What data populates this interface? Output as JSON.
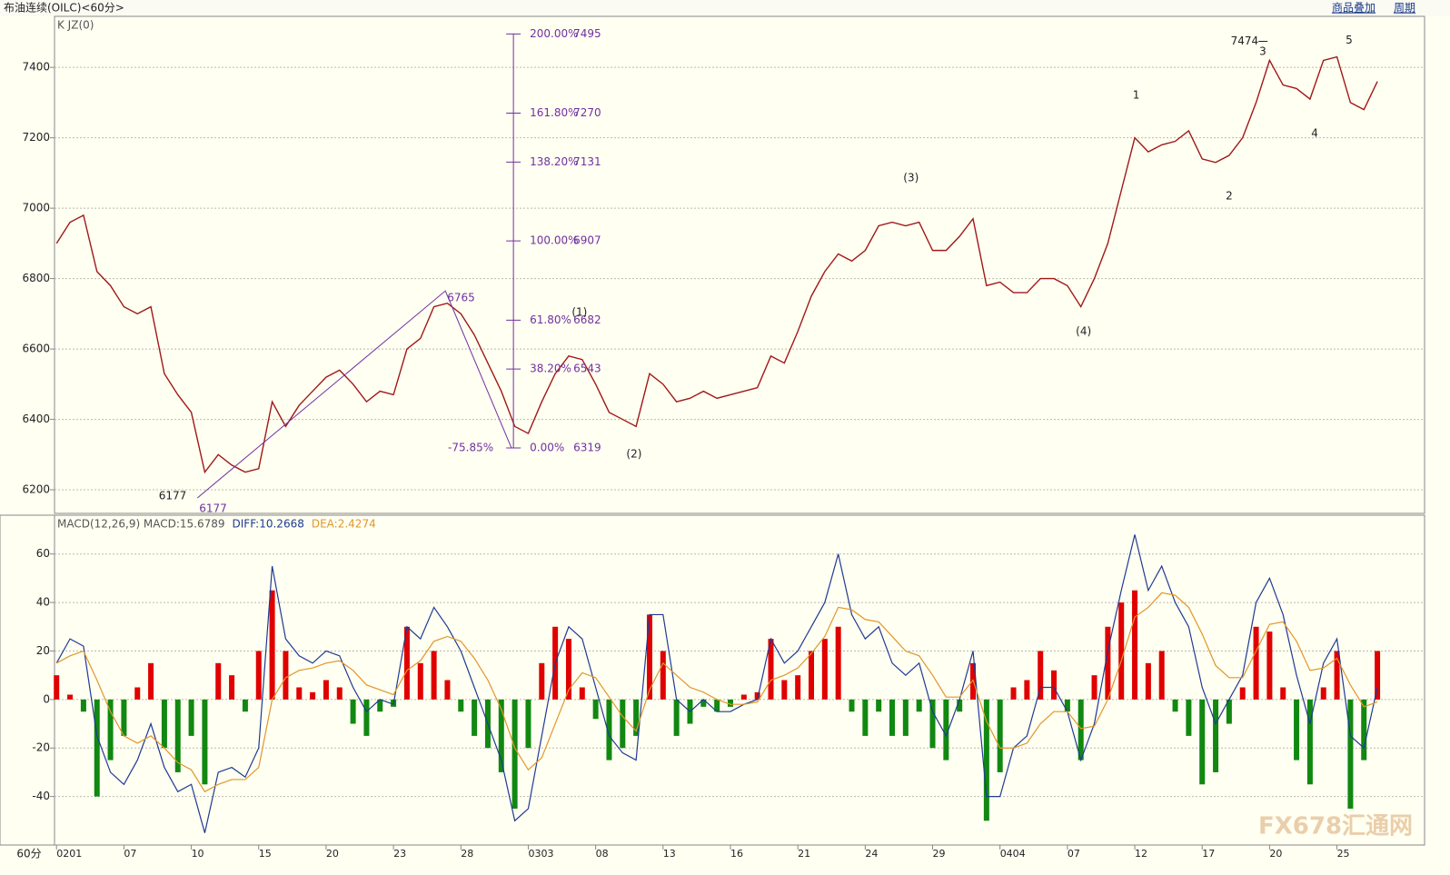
{
  "header": {
    "title": "布油连续(OILC)<60分>",
    "overlay": "商品叠加",
    "period": "周期"
  },
  "period_label": "60分",
  "watermark": "FX678汇通网",
  "chart_data": [
    {
      "type": "line",
      "indicator": "K  JZ(0)",
      "color": "#a01818",
      "xlim": [
        -0.03,
        20.3
      ],
      "ylim": [
        6133,
        7545
      ],
      "yticks": [
        6200,
        6400,
        6600,
        6800,
        7000,
        7200,
        7400
      ],
      "grid": true,
      "x": [
        0,
        0.2,
        0.4,
        0.6,
        0.8,
        1,
        1.2,
        1.4,
        1.6,
        1.8,
        2,
        2.2,
        2.4,
        2.6,
        2.8,
        3,
        3.2,
        3.4,
        3.6,
        3.8,
        4,
        4.2,
        4.4,
        4.6,
        4.8,
        5,
        5.2,
        5.4,
        5.6,
        5.8,
        6,
        6.2,
        6.4,
        6.6,
        6.8,
        7,
        7.2,
        7.4,
        7.6,
        7.8,
        8,
        8.2,
        8.4,
        8.6,
        8.8,
        9,
        9.2,
        9.4,
        9.6,
        9.8,
        10,
        10.2,
        10.4,
        10.6,
        10.8,
        11,
        11.2,
        11.4,
        11.6,
        11.8,
        12,
        12.2,
        12.4,
        12.6,
        12.8,
        13,
        13.2,
        13.4,
        13.6,
        13.8,
        14,
        14.2,
        14.4,
        14.6,
        14.8,
        15,
        15.2,
        15.4,
        15.6,
        15.8,
        16,
        16.2,
        16.4,
        16.6,
        16.8,
        17,
        17.2,
        17.4,
        17.6,
        17.8,
        18,
        18.2,
        18.4,
        18.6,
        18.8,
        19,
        19.2,
        19.4,
        19.6
      ],
      "values": [
        6900,
        6960,
        6980,
        6820,
        6780,
        6720,
        6700,
        6720,
        6530,
        6470,
        6420,
        6250,
        6300,
        6270,
        6250,
        6260,
        6450,
        6380,
        6440,
        6480,
        6520,
        6540,
        6500,
        6450,
        6480,
        6470,
        6600,
        6630,
        6720,
        6730,
        6700,
        6640,
        6560,
        6480,
        6380,
        6360,
        6450,
        6530,
        6580,
        6570,
        6500,
        6420,
        6400,
        6380,
        6530,
        6500,
        6450,
        6460,
        6480,
        6460,
        6470,
        6480,
        6490,
        6580,
        6560,
        6650,
        6750,
        6820,
        6870,
        6850,
        6880,
        6950,
        6960,
        6950,
        6960,
        6880,
        6880,
        6920,
        6970,
        6780,
        6790,
        6760,
        6760,
        6800,
        6800,
        6780,
        6720,
        6800,
        6900,
        7050,
        7200,
        7160,
        7180,
        7190,
        7220,
        7140,
        7130,
        7150,
        7200,
        7300,
        7420,
        7350,
        7340,
        7310,
        7420,
        7430,
        7300,
        7280,
        7360
      ],
      "fib": {
        "x": 6.78,
        "color": "#7030a0",
        "extension_label": "-75.85%",
        "levels": [
          {
            "label": "200.00%",
            "value": 7495
          },
          {
            "label": "161.80%",
            "value": 7270
          },
          {
            "label": "138.20%",
            "value": 7131
          },
          {
            "label": "100.00%",
            "value": 6907
          },
          {
            "label": "61.80%",
            "value": 6682
          },
          {
            "label": "38.20%",
            "value": 6543
          },
          {
            "label": "0.00%",
            "value": 6319
          }
        ]
      },
      "swings": {
        "x": [
          2.09,
          5.77,
          6.75
        ],
        "values": [
          6177,
          6765,
          6319
        ]
      },
      "peak": {
        "x": 17.97,
        "value": 7474
      },
      "wave_labels": [
        {
          "text": "(1)",
          "x": 7.76,
          "y": 6703
        },
        {
          "text": "(2)",
          "x": 8.57,
          "y": 6301
        },
        {
          "text": "(3)",
          "x": 12.68,
          "y": 7085
        },
        {
          "text": "(4)",
          "x": 15.24,
          "y": 6649
        },
        {
          "text": "1",
          "x": 16.02,
          "y": 7320
        },
        {
          "text": "2",
          "x": 17.4,
          "y": 7034
        },
        {
          "text": "3",
          "x": 17.9,
          "y": 7444
        },
        {
          "text": "4",
          "x": 18.67,
          "y": 7212
        },
        {
          "text": "5",
          "x": 19.18,
          "y": 7477
        }
      ]
    },
    {
      "type": "macd",
      "indicator": "MACD(12,26,9)",
      "xlim": [
        -0.03,
        20.3
      ],
      "ylim": [
        -60,
        76
      ],
      "yticks": [
        -40,
        -20,
        0,
        20,
        40,
        60
      ],
      "grid": true,
      "xticks": [
        {
          "value": 0,
          "label": "0201"
        },
        {
          "value": 1,
          "label": "07"
        },
        {
          "value": 2,
          "label": "10"
        },
        {
          "value": 3,
          "label": "15"
        },
        {
          "value": 4,
          "label": "20"
        },
        {
          "value": 5,
          "label": "23"
        },
        {
          "value": 6,
          "label": "28"
        },
        {
          "value": 7,
          "label": "0303"
        },
        {
          "value": 8,
          "label": "08"
        },
        {
          "value": 9,
          "label": "13"
        },
        {
          "value": 10,
          "label": "16"
        },
        {
          "value": 11,
          "label": "21"
        },
        {
          "value": 12,
          "label": "24"
        },
        {
          "value": 13,
          "label": "29"
        },
        {
          "value": 14,
          "label": "0404"
        },
        {
          "value": 15,
          "label": "07"
        },
        {
          "value": 16,
          "label": "12"
        },
        {
          "value": 17,
          "label": "17"
        },
        {
          "value": 18,
          "label": "20"
        },
        {
          "value": 19,
          "label": "25"
        }
      ],
      "x": [
        0,
        0.2,
        0.4,
        0.6,
        0.8,
        1,
        1.2,
        1.4,
        1.6,
        1.8,
        2,
        2.2,
        2.4,
        2.6,
        2.8,
        3,
        3.2,
        3.4,
        3.6,
        3.8,
        4,
        4.2,
        4.4,
        4.6,
        4.8,
        5,
        5.2,
        5.4,
        5.6,
        5.8,
        6,
        6.2,
        6.4,
        6.6,
        6.8,
        7,
        7.2,
        7.4,
        7.6,
        7.8,
        8,
        8.2,
        8.4,
        8.6,
        8.8,
        9,
        9.2,
        9.4,
        9.6,
        9.8,
        10,
        10.2,
        10.4,
        10.6,
        10.8,
        11,
        11.2,
        11.4,
        11.6,
        11.8,
        12,
        12.2,
        12.4,
        12.6,
        12.8,
        13,
        13.2,
        13.4,
        13.6,
        13.8,
        14,
        14.2,
        14.4,
        14.6,
        14.8,
        15,
        15.2,
        15.4,
        15.6,
        15.8,
        16,
        16.2,
        16.4,
        16.6,
        16.8,
        17,
        17.2,
        17.4,
        17.6,
        17.8,
        18,
        18.2,
        18.4,
        18.6,
        18.8,
        19,
        19.2,
        19.4,
        19.6
      ],
      "series": [
        {
          "name": "MACD:15.6789",
          "kind": "bar",
          "color": "#e00000",
          "down_color": "#118811",
          "values": [
            10,
            2,
            -5,
            -40,
            -25,
            -15,
            5,
            15,
            -20,
            -30,
            -15,
            -35,
            15,
            10,
            -5,
            20,
            45,
            20,
            5,
            3,
            8,
            5,
            -10,
            -15,
            -5,
            -3,
            30,
            15,
            20,
            8,
            -5,
            -15,
            -20,
            -30,
            -45,
            -20,
            15,
            30,
            25,
            5,
            -8,
            -25,
            -20,
            -15,
            35,
            20,
            -15,
            -10,
            -3,
            -5,
            -3,
            2,
            3,
            25,
            8,
            10,
            20,
            25,
            30,
            -5,
            -15,
            -5,
            -15,
            -15,
            -5,
            -20,
            -25,
            -5,
            15,
            -50,
            -30,
            5,
            8,
            20,
            12,
            -5,
            -25,
            10,
            30,
            40,
            45,
            15,
            20,
            -5,
            -15,
            -35,
            -30,
            -10,
            5,
            30,
            28,
            5,
            -25,
            -35,
            5,
            20,
            -45,
            -25,
            20
          ]
        },
        {
          "name": "DIFF:10.2668",
          "kind": "line",
          "color": "#1f3a93",
          "values": [
            15,
            25,
            22,
            -15,
            -30,
            -35,
            -25,
            -10,
            -28,
            -38,
            -35,
            -55,
            -30,
            -28,
            -32,
            -20,
            55,
            25,
            18,
            15,
            20,
            18,
            5,
            -5,
            0,
            -2,
            30,
            25,
            38,
            30,
            20,
            5,
            -10,
            -25,
            -50,
            -45,
            -15,
            15,
            30,
            25,
            5,
            -15,
            -22,
            -25,
            35,
            35,
            0,
            -5,
            0,
            -5,
            -5,
            -2,
            0,
            25,
            15,
            20,
            30,
            40,
            60,
            35,
            25,
            30,
            15,
            10,
            15,
            -5,
            -15,
            0,
            20,
            -40,
            -40,
            -20,
            -15,
            5,
            5,
            -5,
            -25,
            -10,
            20,
            45,
            68,
            45,
            55,
            40,
            30,
            5,
            -10,
            0,
            10,
            40,
            50,
            35,
            10,
            -10,
            15,
            25,
            -15,
            -20,
            5
          ]
        },
        {
          "name": "DEA:2.4274",
          "kind": "line",
          "color": "#e0962a",
          "values": [
            15,
            18,
            20,
            8,
            -5,
            -15,
            -18,
            -15,
            -20,
            -26,
            -29,
            -38,
            -35,
            -33,
            -33,
            -28,
            0,
            9,
            12,
            13,
            15,
            16,
            12,
            6,
            4,
            2,
            12,
            16,
            24,
            26,
            24,
            17,
            8,
            -4,
            -20,
            -29,
            -24,
            -10,
            4,
            11,
            9,
            1,
            -7,
            -13,
            4,
            15,
            10,
            5,
            3,
            0,
            -2,
            -2,
            -1,
            8,
            10,
            13,
            19,
            26,
            38,
            37,
            33,
            32,
            26,
            20,
            18,
            10,
            1,
            1,
            8,
            -9,
            -20,
            -20,
            -18,
            -10,
            -5,
            -5,
            -12,
            -11,
            0,
            16,
            34,
            38,
            44,
            43,
            38,
            27,
            14,
            9,
            9,
            20,
            31,
            32,
            24,
            12,
            13,
            17,
            6,
            -3,
            -1
          ]
        }
      ]
    }
  ]
}
